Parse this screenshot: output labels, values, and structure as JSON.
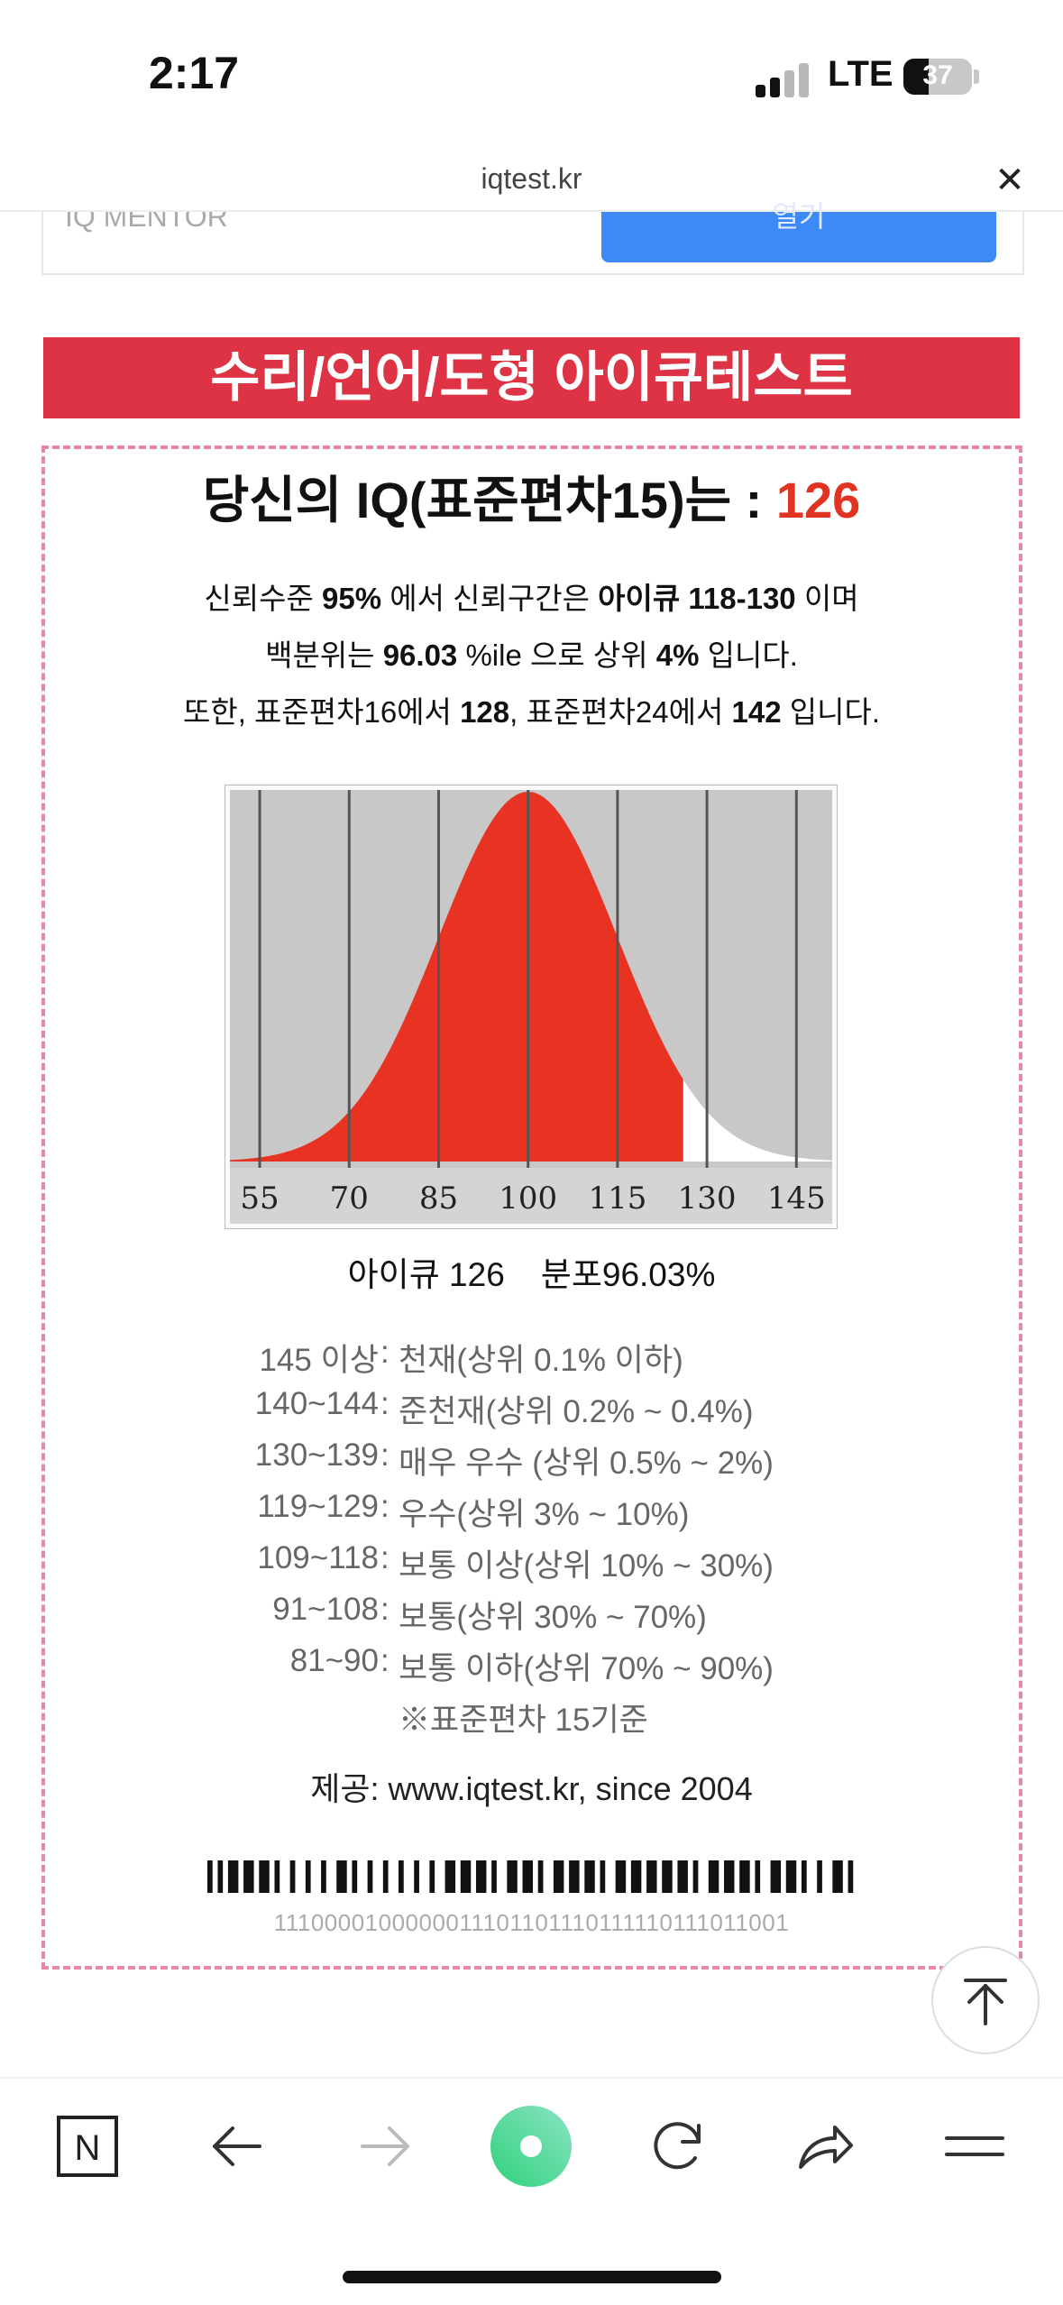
{
  "status_bar": {
    "time": "2:17",
    "network": "LTE",
    "battery": "37",
    "battery_level": 0.37
  },
  "browser": {
    "url": "iqtest.kr"
  },
  "ad": {
    "text": "IQ MENTOR",
    "button_label": "열기"
  },
  "banner": {
    "title": "수리/언어/도형 아이큐테스트"
  },
  "result": {
    "heading_prefix": "당신의 IQ(표준편차15)는 : ",
    "score": "126",
    "line1": {
      "a": "신뢰수준 ",
      "b": "95%",
      "c": " 에서 신뢰구간은 ",
      "d": "아이큐 118-130",
      "e": " 이며"
    },
    "line2": {
      "a": "백분위는 ",
      "b": "96.03",
      "c": " %ile 으로 상위 ",
      "d": "4%",
      "e": " 입니다."
    },
    "line3": {
      "a": "또한, 표준편차16에서 ",
      "b": "128",
      "c": ", 표준편차24에서 ",
      "d": "142",
      "e": " 입니다."
    }
  },
  "chart_data": {
    "type": "area",
    "distribution": "normal",
    "mean": 100,
    "sd": 15,
    "x_ticks": [
      "55",
      "70",
      "85",
      "100",
      "115",
      "130",
      "145"
    ],
    "xlim": [
      50,
      151
    ],
    "highlight_below": 126,
    "colors": {
      "background": "#c8c8c8",
      "filled": "#e83322",
      "unfilled": "#ffffff",
      "gridline": "#555555",
      "axis": "#d4d4d4"
    }
  },
  "chart_caption": {
    "left": "아이큐 126",
    "right": "분포96.03%"
  },
  "levels": [
    {
      "range": "145 이상",
      "desc": "천재(상위 0.1% 이하)"
    },
    {
      "range": "140~144",
      "desc": "준천재(상위 0.2% ~ 0.4%)"
    },
    {
      "range": "130~139",
      "desc": "매우 우수 (상위 0.5% ~ 2%)"
    },
    {
      "range": "119~129",
      "desc": "우수(상위 3% ~ 10%)"
    },
    {
      "range": "109~118",
      "desc": "보통 이상(상위 10% ~ 30%)"
    },
    {
      "range": "91~108",
      "desc": "보통(상위 30% ~ 70%)"
    },
    {
      "range": "81~90",
      "desc": "보통 이하(상위 70% ~ 90%)"
    }
  ],
  "levels_note": "※표준편차 15기준",
  "provider": "제공: www.iqtest.kr, since 2004",
  "barcode": "1110000100000011101101110111110111011001",
  "toolbar": {
    "items": [
      "naver-home",
      "back",
      "forward",
      "green-dot",
      "reload",
      "share",
      "menu"
    ]
  }
}
